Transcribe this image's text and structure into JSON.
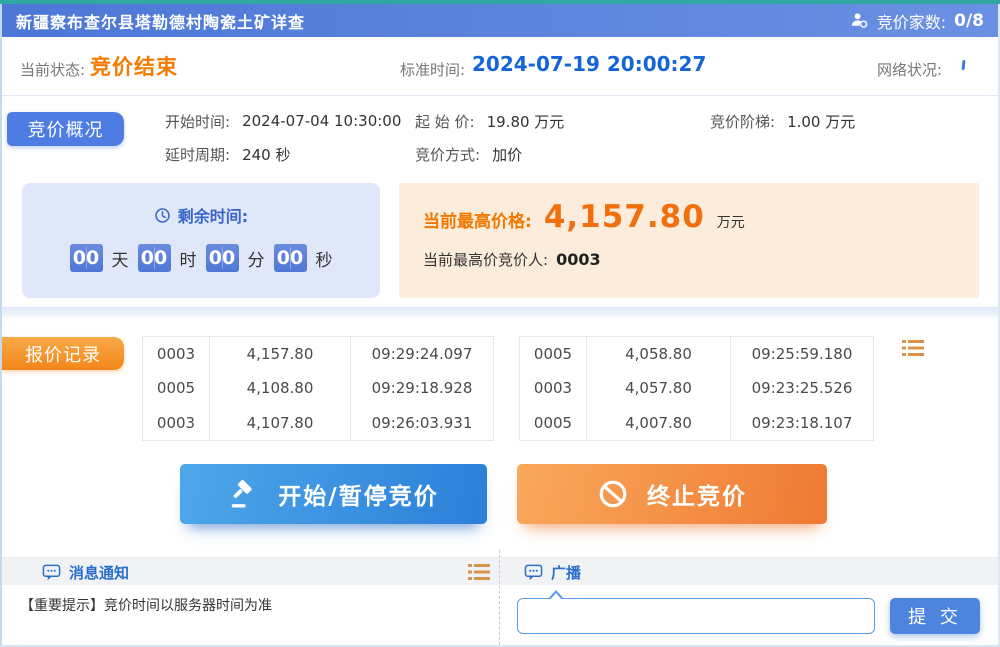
{
  "header": {
    "title": "新疆察布查尔县塔勒德村陶瓷土矿详查",
    "bidders_label": "竞价家数:",
    "bidders_value": "0/8"
  },
  "status_bar": {
    "state_label": "当前状态:",
    "state_value": "竞价结束",
    "time_label": "标准时间:",
    "time_value": "2024-07-19 20:00:27",
    "network_label": "网络状况:"
  },
  "overview": {
    "tab": "竞价概况",
    "fields": [
      {
        "label": "开始时间:",
        "value": "2024-07-04 10:30:00"
      },
      {
        "label": "起 始 价:",
        "value": "19.80 万元"
      },
      {
        "label": "竞价阶梯:",
        "value": "1.00 万元"
      },
      {
        "label": "延时周期:",
        "value": "240 秒"
      },
      {
        "label": "竞价方式:",
        "value": "加价"
      }
    ],
    "countdown": {
      "label": "剩余时间:",
      "days": "00",
      "unit_day": "天",
      "hours": "00",
      "unit_hour": "时",
      "minutes": "00",
      "unit_min": "分",
      "seconds": "00",
      "unit_sec": "秒"
    },
    "highest": {
      "price_label": "当前最高价格:",
      "price_value": "4,157.80",
      "price_unit": "万元",
      "bidder_label": "当前最高价竞价人:",
      "bidder_value": "0003"
    }
  },
  "records": {
    "tab": "报价记录",
    "left_rows": [
      [
        "0003",
        "4,157.80",
        "09:29:24.097"
      ],
      [
        "0005",
        "4,108.80",
        "09:29:18.928"
      ],
      [
        "0003",
        "4,107.80",
        "09:26:03.931"
      ]
    ],
    "right_rows": [
      [
        "0005",
        "4,058.80",
        "09:25:59.180"
      ],
      [
        "0003",
        "4,057.80",
        "09:23:25.526"
      ],
      [
        "0005",
        "4,007.80",
        "09:23:18.107"
      ]
    ]
  },
  "actions": {
    "start_pause": "开始/暂停竞价",
    "terminate": "终止竞价"
  },
  "messages": {
    "title": "消息通知",
    "content": "【重要提示】竞价时间以服务器时间为准"
  },
  "broadcast": {
    "title": "广播",
    "input_value": "",
    "submit_label": "提 交"
  },
  "colors": {
    "titlebar_blue": "#5b82dd",
    "top_strip_teal": "#2fa8a2",
    "status_orange": "#f57a00",
    "time_blue": "#1565d8",
    "countdown_bg": "#dfe7f9",
    "highest_bg": "#fcecdc",
    "price_orange": "#f26f0d",
    "tab_blue": "#4d7ce2",
    "tab_orange": "#f3861b",
    "btn_start_blue": "#2b7fd8",
    "btn_stop_orange": "#ef7a33",
    "submit_blue": "#4d84dd"
  }
}
